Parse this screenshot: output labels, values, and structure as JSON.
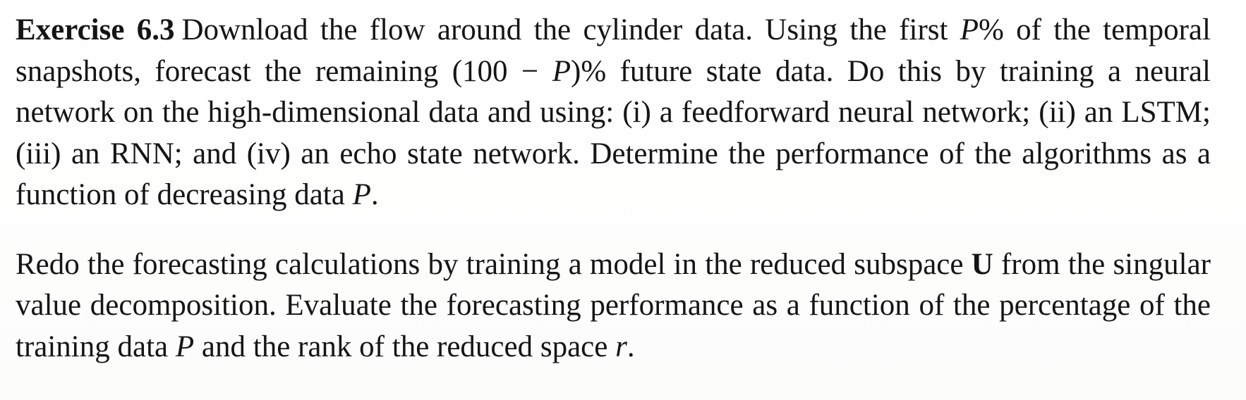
{
  "exercise": {
    "label": "Exercise 6.3",
    "p1": {
      "t1": "Download the flow around the cylinder data. Using the first ",
      "m1": "P",
      "t2": "% of the tem­poral snapshots, forecast the remaining (100 − ",
      "m2": "P",
      "t3": ")% future state data. Do this by training a neural network on the high-dimensional data and using: (i) a feedforward neural network; (ii) an LSTM; (iii) an RNN; and (iv) an echo state network. Determine the performance of the algorithms as a function of decreasing data ",
      "m3": "P",
      "t4": "."
    },
    "p2": {
      "t1": "Redo the forecasting calculations by training a model in the reduced subspace ",
      "m1": "U",
      "t2": " from the singular value decomposition. Evaluate the forecasting performance as a function of the percentage of the training data ",
      "m2": "P",
      "t3": " and the rank of the reduced space ",
      "m3": "r",
      "t4": "."
    }
  }
}
